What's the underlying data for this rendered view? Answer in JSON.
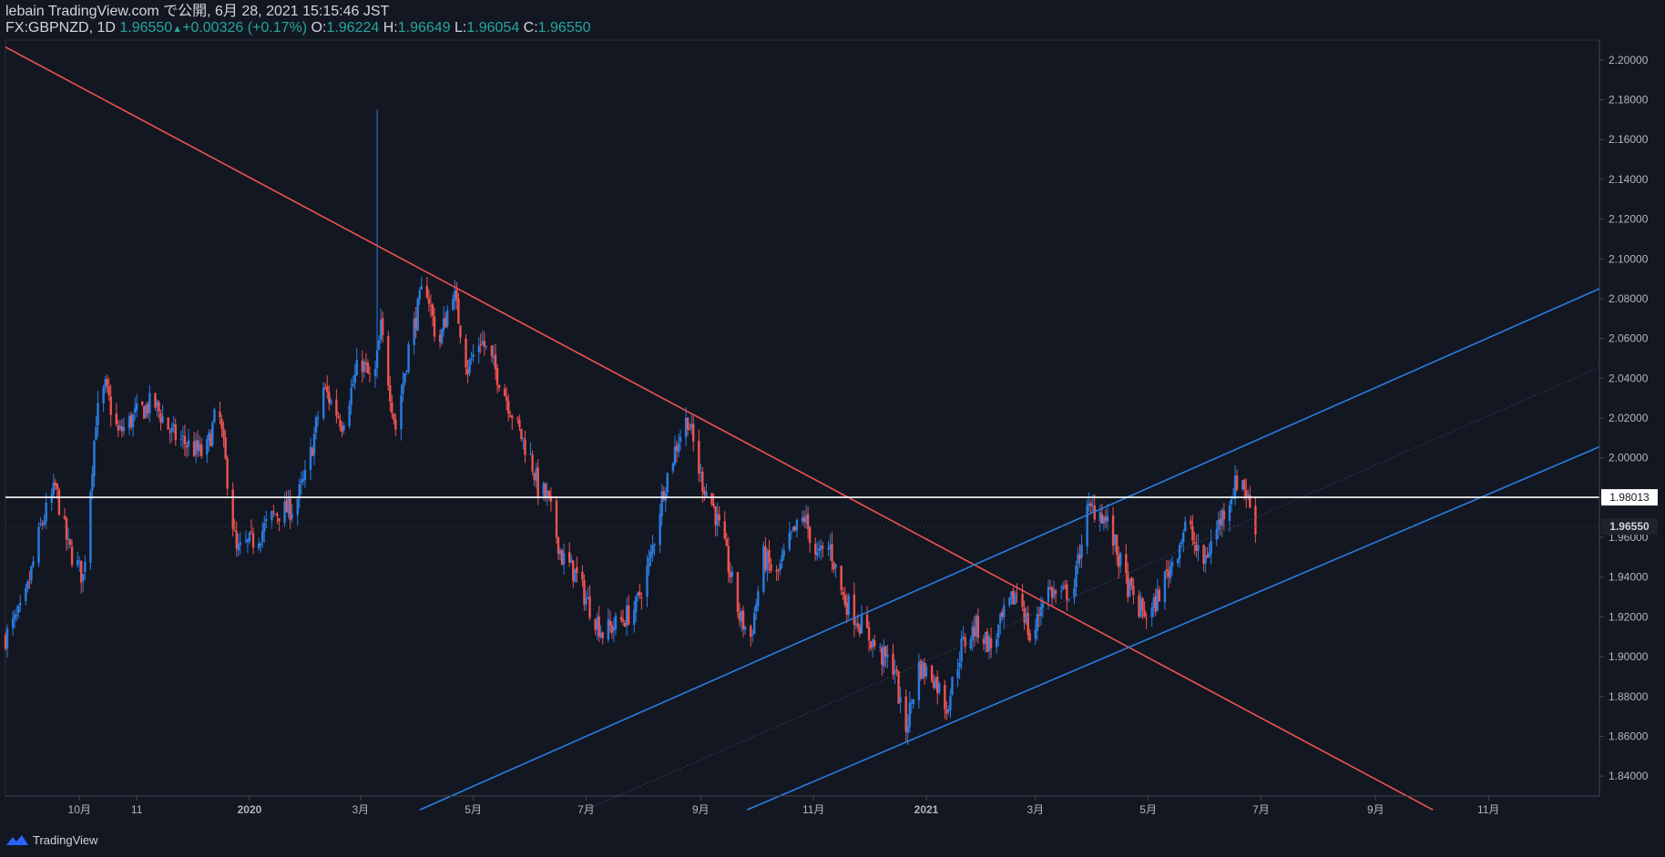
{
  "header": {
    "publish_line": "lebain TradingView.com で公開, 6月 28, 2021 15:15:46 JST",
    "symbol": "FX:GBPNZD, 1D",
    "last": "1.96550",
    "change": "+0.00326 (+0.17%)",
    "o_label": "O:",
    "o_value": "1.96224",
    "h_label": "H:",
    "h_value": "1.96649",
    "l_label": "L:",
    "l_value": "1.96054",
    "c_label": "C:",
    "c_value": "1.96550"
  },
  "footer": {
    "brand": "TradingView",
    "icon": "tradingview-logo-icon"
  },
  "colors": {
    "background": "#131722",
    "up": "#2a7de1",
    "down": "#ef5350",
    "trend_line": "#ef5350",
    "channel": "#2a7de1",
    "level_line": "#ffffff",
    "axis_text": "#b2b5be"
  },
  "chart_data": {
    "type": "candlestick",
    "symbol": "FX:GBPNZD",
    "interval": "1D",
    "ylim": [
      1.83,
      2.21
    ],
    "y_ticks": [
      1.84,
      1.86,
      1.88,
      1.9,
      1.92,
      1.94,
      1.96,
      1.98,
      2.0,
      2.02,
      2.04,
      2.06,
      2.08,
      2.1,
      2.12,
      2.14,
      2.16,
      2.18,
      2.2
    ],
    "y_tick_labels": [
      "1.84000",
      "1.86000",
      "1.88000",
      "1.90000",
      "1.92000",
      "1.94000",
      "1.96000",
      "1.98000",
      "2.00000",
      "2.02000",
      "2.04000",
      "2.06000",
      "2.08000",
      "2.10000",
      "2.12000",
      "2.14000",
      "2.16000",
      "2.18000",
      "2.20000"
    ],
    "x_range": [
      "2019-08-22",
      "2021-12-31"
    ],
    "x_ticks": [
      {
        "date": "2019-10-01",
        "label": "10月"
      },
      {
        "date": "2019-11-01",
        "label": "11"
      },
      {
        "date": "2020-01-01",
        "label": "2020"
      },
      {
        "date": "2020-03-01",
        "label": "3月"
      },
      {
        "date": "2020-05-01",
        "label": "5月"
      },
      {
        "date": "2020-07-01",
        "label": "7月"
      },
      {
        "date": "2020-09-01",
        "label": "9月"
      },
      {
        "date": "2020-11-01",
        "label": "11月"
      },
      {
        "date": "2021-01-01",
        "label": "2021"
      },
      {
        "date": "2021-03-01",
        "label": "3月"
      },
      {
        "date": "2021-05-01",
        "label": "5月"
      },
      {
        "date": "2021-07-01",
        "label": "7月"
      },
      {
        "date": "2021-09-01",
        "label": "9月"
      },
      {
        "date": "2021-11-01",
        "label": "11月"
      }
    ],
    "price_path": [
      [
        "2019-08-22",
        1.91
      ],
      [
        "2019-09-01",
        1.925
      ],
      [
        "2019-09-10",
        1.965
      ],
      [
        "2019-09-18",
        1.985
      ],
      [
        "2019-09-25",
        1.955
      ],
      [
        "2019-10-03",
        1.94
      ],
      [
        "2019-10-10",
        2.02
      ],
      [
        "2019-10-15",
        2.035
      ],
      [
        "2019-10-22",
        2.012
      ],
      [
        "2019-11-01",
        2.022
      ],
      [
        "2019-11-10",
        2.028
      ],
      [
        "2019-11-20",
        2.012
      ],
      [
        "2019-12-01",
        2.005
      ],
      [
        "2019-12-08",
        2.001
      ],
      [
        "2019-12-15",
        2.026
      ],
      [
        "2019-12-20",
        1.99
      ],
      [
        "2019-12-25",
        1.952
      ],
      [
        "2020-01-05",
        1.96
      ],
      [
        "2020-01-15",
        1.972
      ],
      [
        "2020-01-25",
        1.975
      ],
      [
        "2020-02-01",
        1.992
      ],
      [
        "2020-02-10",
        2.035
      ],
      [
        "2020-02-20",
        2.018
      ],
      [
        "2020-03-01",
        2.05
      ],
      [
        "2020-03-08",
        2.035
      ],
      [
        "2020-03-12",
        2.065
      ],
      [
        "2020-03-20",
        2.015
      ],
      [
        "2020-03-27",
        2.055
      ],
      [
        "2020-04-05",
        2.09
      ],
      [
        "2020-04-12",
        2.055
      ],
      [
        "2020-04-20",
        2.085
      ],
      [
        "2020-04-28",
        2.045
      ],
      [
        "2020-05-05",
        2.06
      ],
      [
        "2020-05-15",
        2.04
      ],
      [
        "2020-05-25",
        2.015
      ],
      [
        "2020-06-01",
        2.0
      ],
      [
        "2020-06-05",
        1.985
      ],
      [
        "2020-06-10",
        1.98
      ],
      [
        "2020-06-18",
        1.95
      ],
      [
        "2020-06-25",
        1.942
      ],
      [
        "2020-07-03",
        1.925
      ],
      [
        "2020-07-10",
        1.912
      ],
      [
        "2020-07-20",
        1.918
      ],
      [
        "2020-07-28",
        1.925
      ],
      [
        "2020-08-05",
        1.95
      ],
      [
        "2020-08-12",
        1.985
      ],
      [
        "2020-08-20",
        2.01
      ],
      [
        "2020-08-25",
        2.02
      ],
      [
        "2020-09-01",
        1.99
      ],
      [
        "2020-09-08",
        1.975
      ],
      [
        "2020-09-15",
        1.95
      ],
      [
        "2020-09-22",
        1.92
      ],
      [
        "2020-09-28",
        1.91
      ],
      [
        "2020-10-05",
        1.95
      ],
      [
        "2020-10-12",
        1.94
      ],
      [
        "2020-10-20",
        1.96
      ],
      [
        "2020-10-27",
        1.97
      ],
      [
        "2020-11-03",
        1.95
      ],
      [
        "2020-11-10",
        1.955
      ],
      [
        "2020-11-17",
        1.93
      ],
      [
        "2020-11-24",
        1.92
      ],
      [
        "2020-12-01",
        1.91
      ],
      [
        "2020-12-08",
        1.9
      ],
      [
        "2020-12-15",
        1.895
      ],
      [
        "2020-12-20",
        1.86
      ],
      [
        "2020-12-28",
        1.895
      ],
      [
        "2021-01-05",
        1.89
      ],
      [
        "2021-01-12",
        1.875
      ],
      [
        "2021-01-20",
        1.905
      ],
      [
        "2021-01-28",
        1.915
      ],
      [
        "2021-02-05",
        1.905
      ],
      [
        "2021-02-12",
        1.92
      ],
      [
        "2021-02-20",
        1.935
      ],
      [
        "2021-02-27",
        1.905
      ],
      [
        "2021-03-06",
        1.935
      ],
      [
        "2021-03-14",
        1.93
      ],
      [
        "2021-03-22",
        1.935
      ],
      [
        "2021-03-28",
        1.972
      ],
      [
        "2021-04-04",
        1.975
      ],
      [
        "2021-04-10",
        1.965
      ],
      [
        "2021-04-18",
        1.94
      ],
      [
        "2021-04-25",
        1.925
      ],
      [
        "2021-05-02",
        1.92
      ],
      [
        "2021-05-08",
        1.935
      ],
      [
        "2021-05-15",
        1.95
      ],
      [
        "2021-05-22",
        1.968
      ],
      [
        "2021-05-30",
        1.945
      ],
      [
        "2021-06-06",
        1.962
      ],
      [
        "2021-06-13",
        1.978
      ],
      [
        "2021-06-20",
        1.992
      ],
      [
        "2021-06-28",
        1.966
      ]
    ],
    "trend_line": {
      "start": [
        "2019-08-22",
        2.2065
      ],
      "end": [
        "2021-10-02",
        1.823
      ]
    },
    "channel_upper": {
      "start": [
        "2020-04-02",
        1.823
      ],
      "end": [
        "2021-12-31",
        2.085
      ]
    },
    "channel_lower": {
      "start": [
        "2020-09-26",
        1.823
      ],
      "end": [
        "2021-12-31",
        2.0055
      ]
    },
    "channel_mid": {
      "start": [
        "2020-07-01",
        1.823
      ],
      "end": [
        "2021-12-31",
        2.0455
      ]
    },
    "level_line": {
      "value": 1.98013,
      "label": "1.98013"
    },
    "last_price": {
      "value": 1.9655,
      "label": "1.96550"
    }
  }
}
